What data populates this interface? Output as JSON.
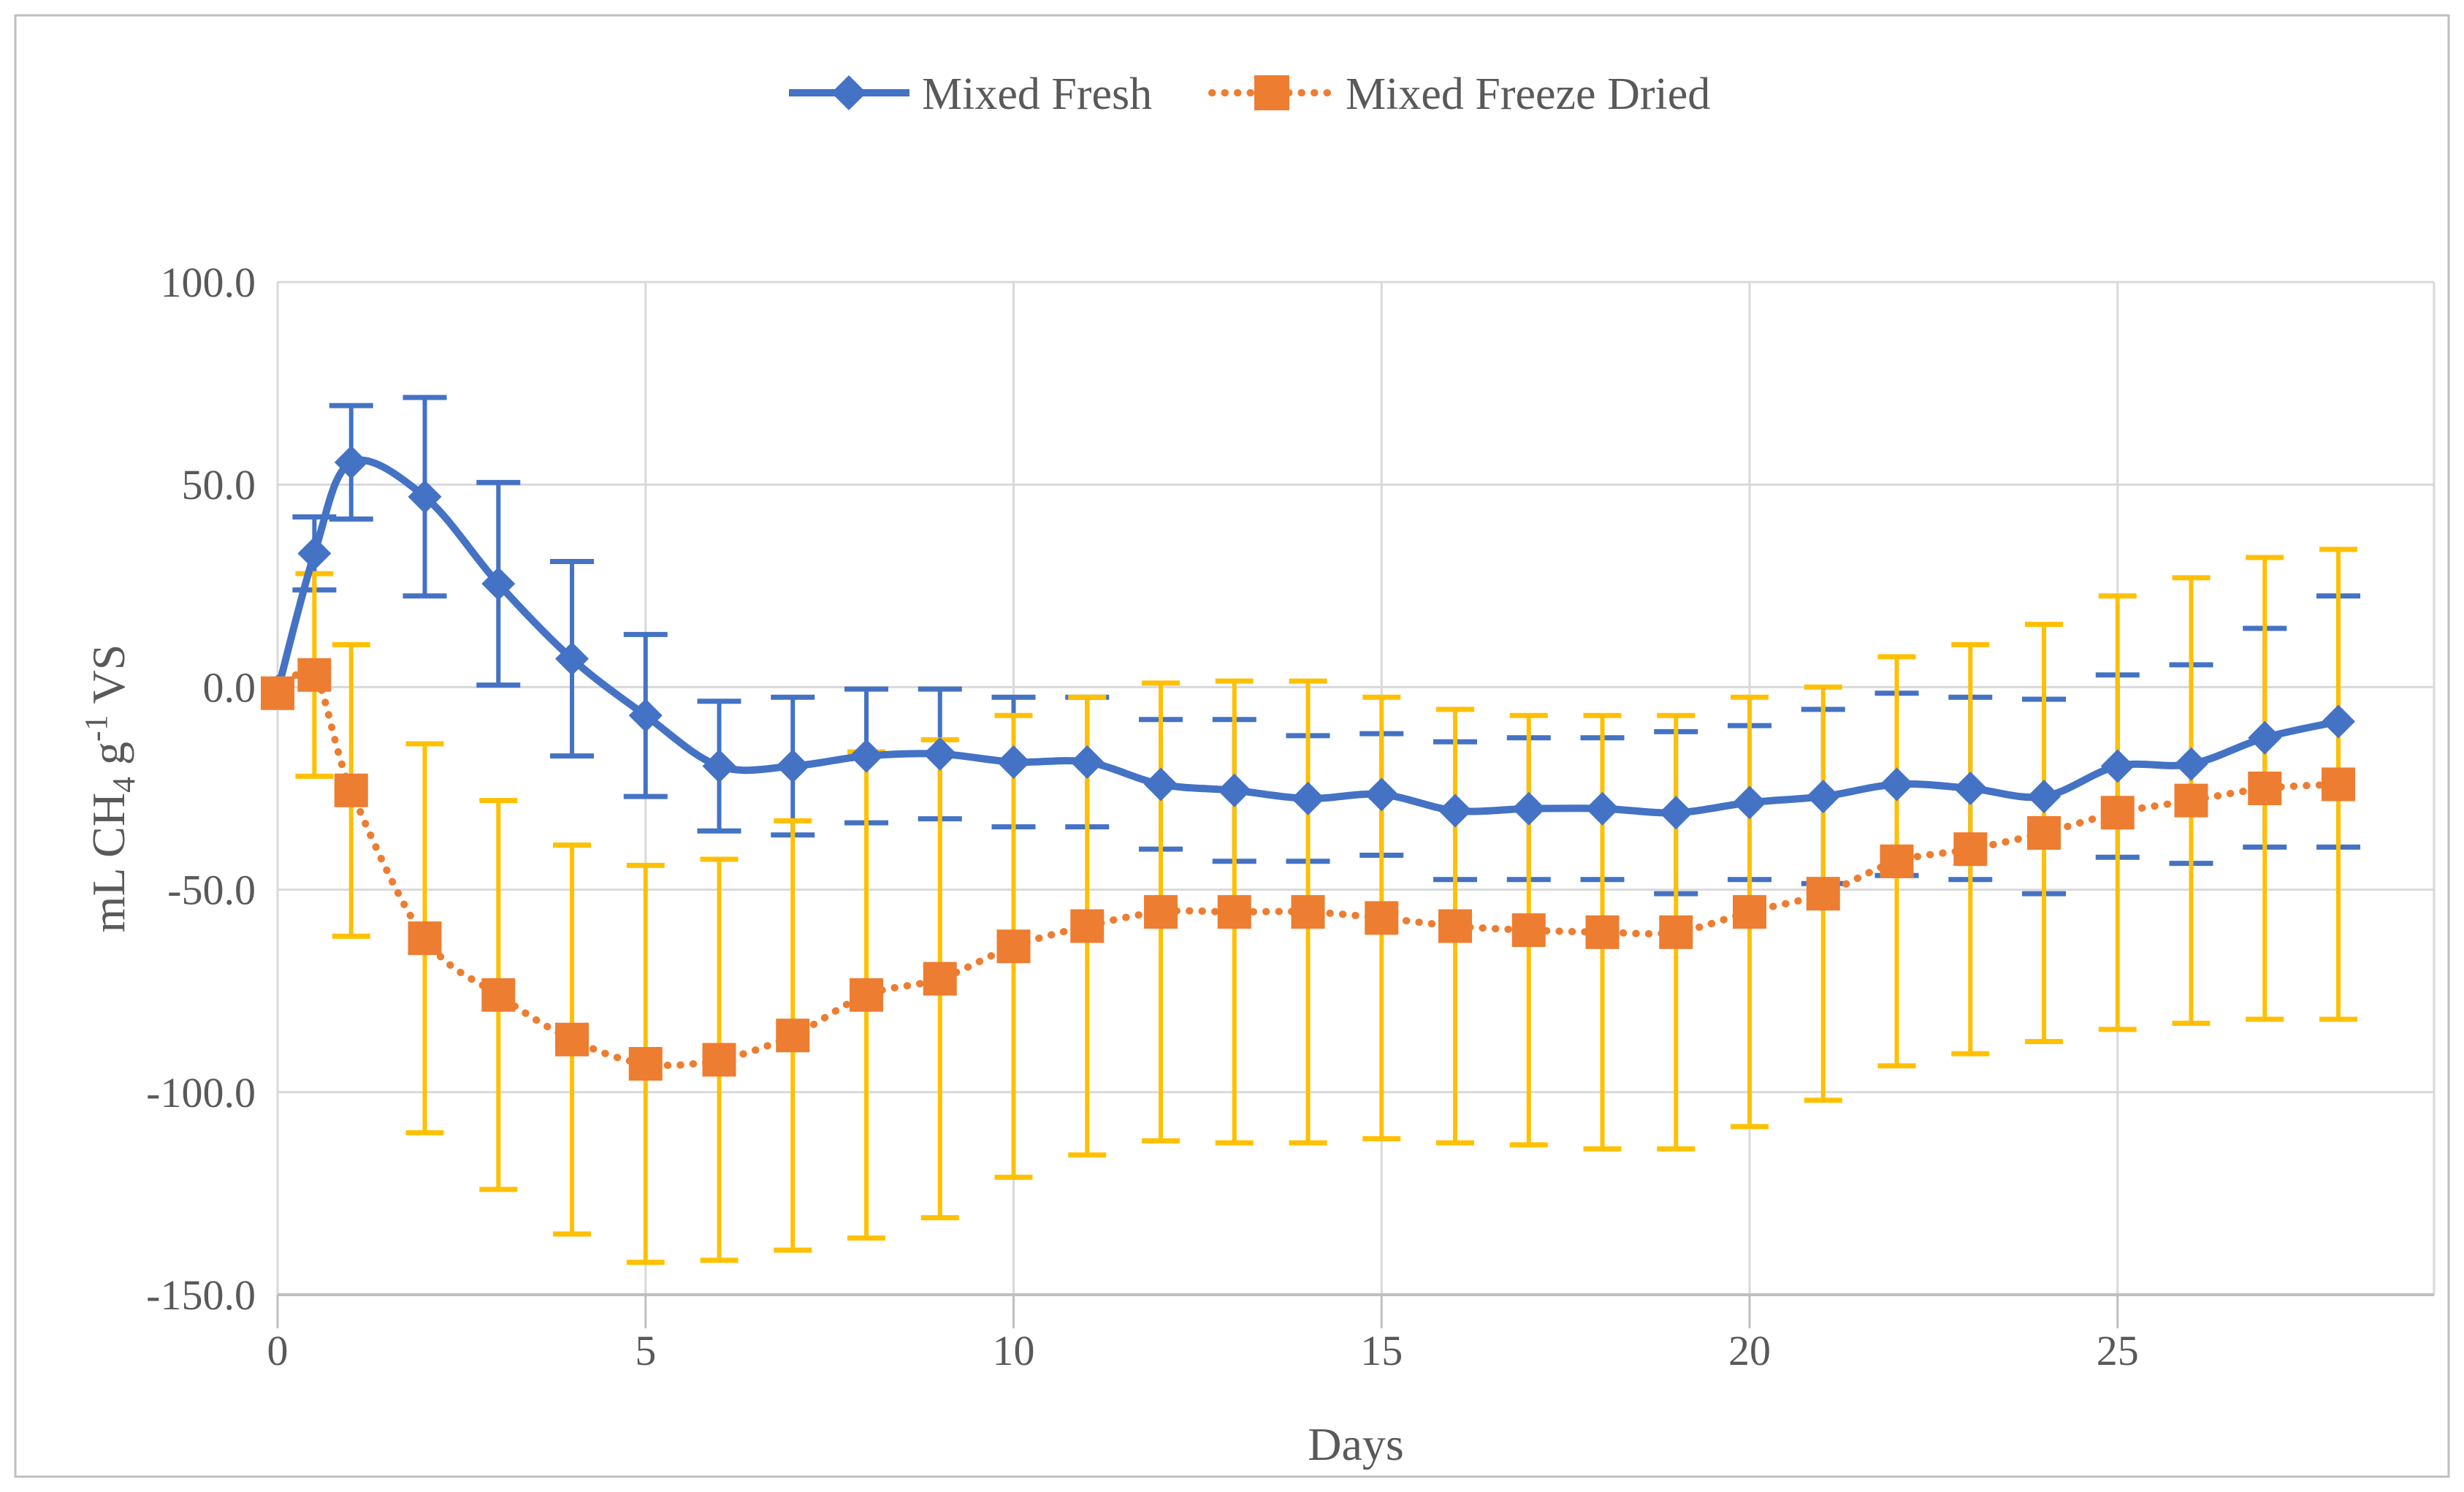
{
  "figure": {
    "background": "#ffffff",
    "border_color": "#bfbfbf"
  },
  "legend": {
    "items": [
      {
        "label": "Mixed Fresh",
        "color": "#4472C4",
        "marker": "diamond",
        "line_style": "solid"
      },
      {
        "label": "Mixed Freeze Dried",
        "color": "#ED7D31",
        "marker": "square",
        "line_style": "dotted"
      }
    ]
  },
  "chart_data": {
    "type": "line",
    "title": "",
    "xlabel": "Days",
    "ylabel": "mL CH4 g-1 VS",
    "ylabel_rich": {
      "pre": "mL CH",
      "sub": "4",
      "mid": " g",
      "sup": "-1",
      "post": " VS"
    },
    "xlim": [
      0,
      29.3
    ],
    "ylim": [
      -150,
      100
    ],
    "x_ticks": [
      0,
      5,
      10,
      15,
      20,
      25
    ],
    "y_ticks": [
      {
        "value": 100,
        "label": "100.0"
      },
      {
        "value": 50,
        "label": "50.0"
      },
      {
        "value": 0,
        "label": "0.0"
      },
      {
        "value": -50,
        "label": "-50.0"
      },
      {
        "value": -100,
        "label": "-100.0"
      },
      {
        "value": -150,
        "label": "-150.0"
      }
    ],
    "grid_on": true,
    "grid_color": "#d9d9d9",
    "axis_color": "#bfbfbf",
    "text_color": "#595959",
    "legend_position": "top-center",
    "x": [
      0,
      0.5,
      1,
      2,
      3,
      4,
      5,
      6,
      7,
      8,
      9,
      10,
      11,
      12,
      13,
      14,
      15,
      16,
      17,
      18,
      19,
      20,
      21,
      22,
      23,
      24,
      25,
      26,
      27,
      28
    ],
    "series": [
      {
        "name": "Mixed Fresh",
        "color": "#4472C4",
        "error_bar_color": "#4472C4",
        "marker": "diamond",
        "line_style": "solid",
        "values": [
          -1,
          33,
          55.5,
          47,
          25.5,
          7,
          -7,
          -19.5,
          -19.5,
          -17,
          -16.5,
          -18.5,
          -18.5,
          -24,
          -25.5,
          -27.5,
          -26.5,
          -30.5,
          -30,
          -30,
          -31,
          -28.5,
          -27,
          -24,
          -25,
          -27,
          -19.5,
          -19,
          -12.5,
          -8.5
        ],
        "err_upper": [
          null,
          42,
          69.5,
          71.5,
          50.5,
          31,
          13,
          -3.5,
          -2.5,
          -0.5,
          -0.5,
          -2.5,
          -2.5,
          -8,
          -8,
          -12,
          -11.5,
          -13.5,
          -12.5,
          -12.5,
          -11,
          -9.5,
          -5.5,
          -1.5,
          -2.5,
          -3,
          3,
          5.5,
          14.5,
          22.5
        ],
        "err_lower": [
          null,
          24,
          41.5,
          22.5,
          0.5,
          -17,
          -27,
          -35.5,
          -36.5,
          -33.5,
          -32.5,
          -34.5,
          -34.5,
          -40,
          -43,
          -43,
          -41.5,
          -47.5,
          -47.5,
          -47.5,
          -51,
          -47.5,
          -48.5,
          -46.5,
          -47.5,
          -51,
          -42,
          -43.5,
          -39.5,
          -39.5
        ]
      },
      {
        "name": "Mixed Freeze Dried",
        "color": "#ED7D31",
        "error_bar_color": "#FFC000",
        "marker": "square",
        "line_style": "dotted",
        "values": [
          -1.5,
          3,
          -25.5,
          -62,
          -76,
          -87,
          -93,
          -92,
          -86,
          -76,
          -72,
          -64,
          -59,
          -55.5,
          -55.5,
          -55.5,
          -57,
          -59,
          -60,
          -60.5,
          -60.5,
          -55.5,
          -51,
          -43,
          -40,
          -36,
          -31,
          -28,
          -25,
          -24
        ],
        "err_upper": [
          null,
          28,
          10.5,
          -14,
          -28,
          -39,
          -44,
          -42.5,
          -33,
          -16,
          -13,
          -7,
          -2.5,
          1,
          1.5,
          1.5,
          -2.5,
          -5.5,
          -7,
          -7,
          -7,
          -2.5,
          0,
          7.5,
          10.5,
          15.5,
          22.5,
          27,
          32,
          34
        ],
        "err_lower": [
          null,
          -22,
          -61.5,
          -110,
          -124,
          -135,
          -142,
          -141.5,
          -139,
          -136,
          -131,
          -121,
          -115.5,
          -112,
          -112.5,
          -112.5,
          -111.5,
          -112.5,
          -113,
          -114,
          -114,
          -108.5,
          -102,
          -93.5,
          -90.5,
          -87.5,
          -84.5,
          -83,
          -82,
          -82
        ]
      }
    ]
  }
}
